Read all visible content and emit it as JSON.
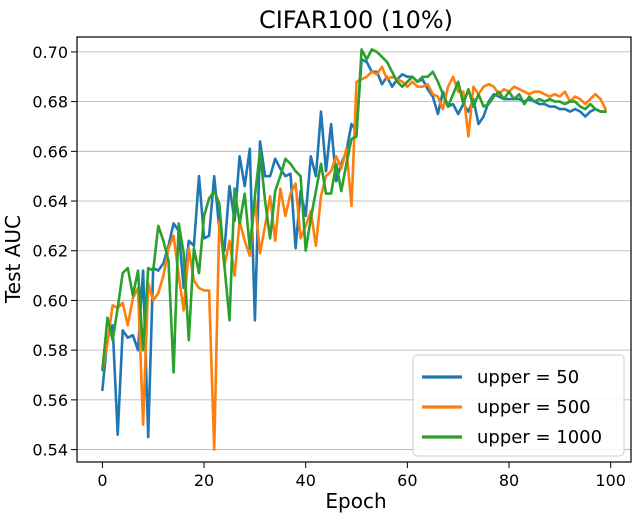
{
  "chart_data": {
    "type": "line",
    "title": "CIFAR100 (10%)",
    "xlabel": "Epoch",
    "ylabel": "Test AUC",
    "xlim": [
      -5,
      104
    ],
    "ylim": [
      0.535,
      0.706
    ],
    "xticks": [
      0,
      20,
      40,
      60,
      80,
      100
    ],
    "yticks": [
      0.54,
      0.56,
      0.58,
      0.6,
      0.62,
      0.64,
      0.66,
      0.68,
      0.7
    ],
    "xtick_labels": [
      "0",
      "20",
      "40",
      "60",
      "80",
      "100"
    ],
    "ytick_labels": [
      "0.54",
      "0.56",
      "0.58",
      "0.60",
      "0.62",
      "0.64",
      "0.66",
      "0.68",
      "0.70"
    ],
    "grid": "horizontal",
    "legend_position": "bottom-right",
    "series": [
      {
        "name": "upper = 50",
        "color": "#1f77b4",
        "values": [
          0.564,
          0.585,
          0.59,
          0.546,
          0.588,
          0.585,
          0.586,
          0.58,
          0.612,
          0.545,
          0.613,
          0.612,
          0.615,
          0.622,
          0.631,
          0.628,
          0.605,
          0.624,
          0.622,
          0.65,
          0.625,
          0.626,
          0.65,
          0.629,
          0.62,
          0.646,
          0.632,
          0.658,
          0.646,
          0.661,
          0.592,
          0.664,
          0.65,
          0.65,
          0.657,
          0.653,
          0.65,
          0.651,
          0.621,
          0.644,
          0.634,
          0.658,
          0.65,
          0.676,
          0.652,
          0.671,
          0.648,
          0.655,
          0.66,
          0.671,
          0.668,
          0.697,
          0.696,
          0.692,
          0.692,
          0.687,
          0.69,
          0.686,
          0.689,
          0.691,
          0.69,
          0.69,
          0.688,
          0.689,
          0.685,
          0.682,
          0.675,
          0.684,
          0.678,
          0.679,
          0.675,
          0.679,
          0.676,
          0.681,
          0.671,
          0.674,
          0.68,
          0.683,
          0.682,
          0.681,
          0.681,
          0.681,
          0.681,
          0.68,
          0.681,
          0.68,
          0.679,
          0.679,
          0.678,
          0.678,
          0.677,
          0.677,
          0.676,
          0.677,
          0.676,
          0.674,
          0.676,
          0.677,
          0.676,
          0.676
        ]
      },
      {
        "name": "upper = 500",
        "color": "#ff7f0e",
        "values": [
          0.572,
          0.583,
          0.598,
          0.597,
          0.599,
          0.59,
          0.601,
          0.605,
          0.55,
          0.607,
          0.6,
          0.603,
          0.61,
          0.621,
          0.626,
          0.61,
          0.596,
          0.621,
          0.608,
          0.605,
          0.604,
          0.604,
          0.54,
          0.632,
          0.614,
          0.624,
          0.61,
          0.632,
          0.624,
          0.618,
          0.641,
          0.619,
          0.63,
          0.642,
          0.624,
          0.645,
          0.634,
          0.643,
          0.647,
          0.625,
          0.63,
          0.636,
          0.622,
          0.642,
          0.65,
          0.652,
          0.658,
          0.653,
          0.661,
          0.638,
          0.688,
          0.689,
          0.69,
          0.692,
          0.691,
          0.694,
          0.689,
          0.69,
          0.689,
          0.688,
          0.686,
          0.688,
          0.686,
          0.686,
          0.687,
          0.683,
          0.682,
          0.677,
          0.686,
          0.69,
          0.684,
          0.684,
          0.666,
          0.686,
          0.683,
          0.686,
          0.687,
          0.686,
          0.683,
          0.685,
          0.684,
          0.686,
          0.685,
          0.684,
          0.683,
          0.684,
          0.684,
          0.683,
          0.682,
          0.683,
          0.682,
          0.684,
          0.68,
          0.682,
          0.681,
          0.679,
          0.681,
          0.683,
          0.681,
          0.677
        ]
      },
      {
        "name": "upper = 1000",
        "color": "#2ca02c",
        "values": [
          0.572,
          0.593,
          0.584,
          0.597,
          0.611,
          0.613,
          0.602,
          0.612,
          0.58,
          0.613,
          0.612,
          0.63,
          0.624,
          0.616,
          0.571,
          0.631,
          0.619,
          0.584,
          0.621,
          0.611,
          0.634,
          0.641,
          0.644,
          0.639,
          0.614,
          0.592,
          0.645,
          0.631,
          0.643,
          0.621,
          0.642,
          0.66,
          0.64,
          0.625,
          0.644,
          0.65,
          0.657,
          0.655,
          0.652,
          0.65,
          0.62,
          0.633,
          0.644,
          0.655,
          0.643,
          0.643,
          0.655,
          0.644,
          0.655,
          0.665,
          0.666,
          0.701,
          0.697,
          0.701,
          0.7,
          0.698,
          0.696,
          0.692,
          0.688,
          0.686,
          0.688,
          0.69,
          0.688,
          0.69,
          0.69,
          0.692,
          0.688,
          0.683,
          0.678,
          0.683,
          0.688,
          0.679,
          0.685,
          0.678,
          0.683,
          0.678,
          0.679,
          0.682,
          0.684,
          0.681,
          0.684,
          0.681,
          0.683,
          0.679,
          0.682,
          0.68,
          0.681,
          0.68,
          0.681,
          0.68,
          0.68,
          0.679,
          0.68,
          0.68,
          0.678,
          0.677,
          0.679,
          0.677,
          0.676,
          0.676
        ]
      }
    ]
  }
}
